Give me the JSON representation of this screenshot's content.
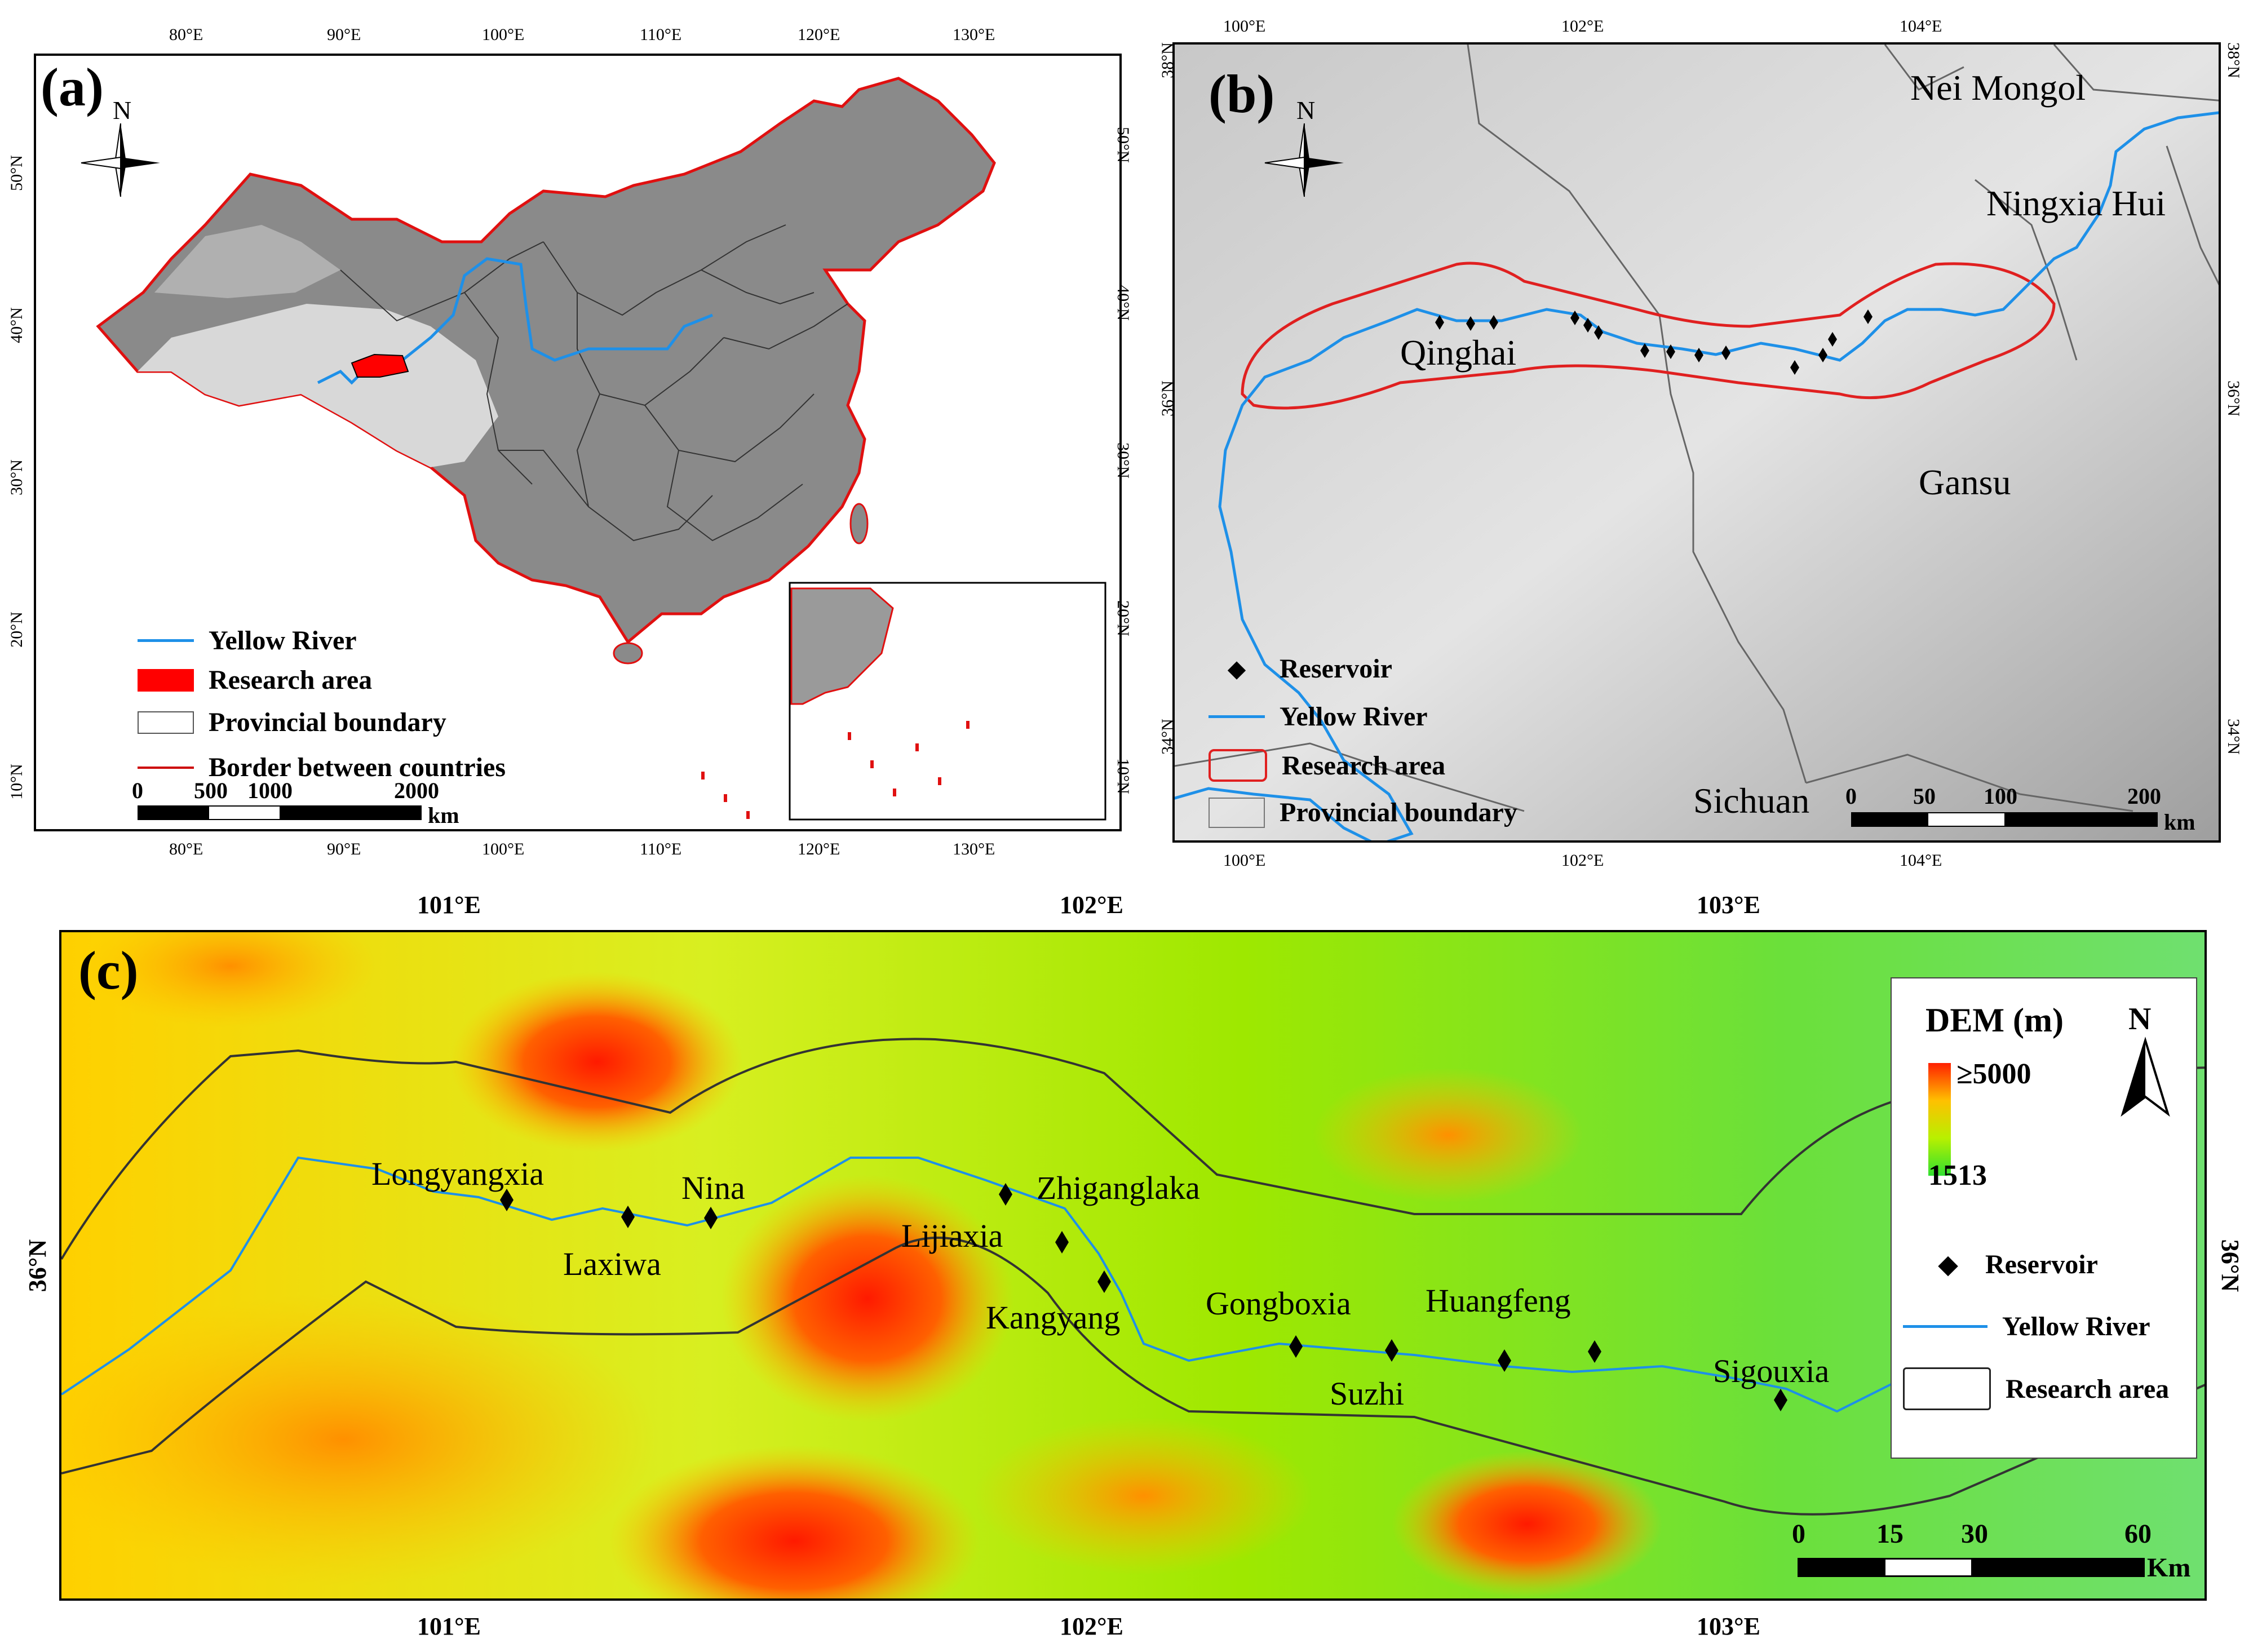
{
  "panels": {
    "a": {
      "label": "(a)",
      "north": "N",
      "top_ticks": [
        "80°E",
        "90°E",
        "100°E",
        "110°E",
        "120°E",
        "130°E"
      ],
      "bottom_ticks": [
        "80°E",
        "90°E",
        "100°E",
        "110°E",
        "120°E",
        "130°E"
      ],
      "left_ticks": [
        "50°N",
        "40°N",
        "30°N",
        "20°N",
        "10°N"
      ],
      "right_ticks": [
        "50°N",
        "40°N",
        "30°N",
        "20°N",
        "10°N"
      ],
      "legend": [
        {
          "label": "Yellow River",
          "symbol": "line",
          "color": "#1e90e8"
        },
        {
          "label": "Research area",
          "symbol": "fill",
          "color": "#ff0000"
        },
        {
          "label": "Provincial boundary",
          "symbol": "box",
          "color": "#555555"
        },
        {
          "label": "Border between countries",
          "symbol": "line",
          "color": "#cc0000"
        }
      ],
      "scale": {
        "ticks": [
          "0",
          "500",
          "1000",
          "2000"
        ],
        "unit": "km"
      }
    },
    "b": {
      "label": "(b)",
      "north": "N",
      "top_ticks": [
        "100°E",
        "102°E",
        "104°E"
      ],
      "bottom_ticks": [
        "100°E",
        "102°E",
        "104°E"
      ],
      "left_ticks": [
        "38°N",
        "36°N",
        "34°N"
      ],
      "right_ticks": [
        "38°N",
        "36°N",
        "34°N"
      ],
      "regions": [
        "Nei Mongol",
        "Ningxia Hui",
        "Qinghai",
        "Gansu",
        "Sichuan"
      ],
      "legend": [
        {
          "label": "Reservoir",
          "symbol": "diamond",
          "color": "#000000"
        },
        {
          "label": "Yellow River",
          "symbol": "line",
          "color": "#1e90e8"
        },
        {
          "label": "Research area",
          "symbol": "box",
          "color": "#e02020"
        },
        {
          "label": "Provincial boundary",
          "symbol": "box",
          "color": "#777777"
        }
      ],
      "scale": {
        "ticks": [
          "0",
          "50",
          "100",
          "200"
        ],
        "unit": "km"
      }
    },
    "c": {
      "label": "(c)",
      "north": "N",
      "top_ticks": [
        "101°E",
        "102°E",
        "103°E"
      ],
      "bottom_ticks": [
        "101°E",
        "102°E",
        "103°E"
      ],
      "left_ticks": [
        "36°N"
      ],
      "right_ticks": [
        "36°N"
      ],
      "dem": {
        "title": "DEM (m)",
        "max": "≥5000",
        "min": "1513"
      },
      "reservoirs": [
        "Longyangxia",
        "Laxiwa",
        "Nina",
        "Zhiganglaka",
        "Lijiaxia",
        "Kangyang",
        "Gongboxia",
        "Suzhi",
        "Huangfeng",
        "Sigouxia"
      ],
      "legend": [
        {
          "label": "Reservoir",
          "symbol": "diamond",
          "color": "#000000"
        },
        {
          "label": "Yellow River",
          "symbol": "line",
          "color": "#1e90e8"
        },
        {
          "label": "Research area",
          "symbol": "box",
          "color": "#222222"
        }
      ],
      "scale": {
        "ticks": [
          "0",
          "15",
          "30",
          "60"
        ],
        "unit": "Km"
      }
    }
  }
}
